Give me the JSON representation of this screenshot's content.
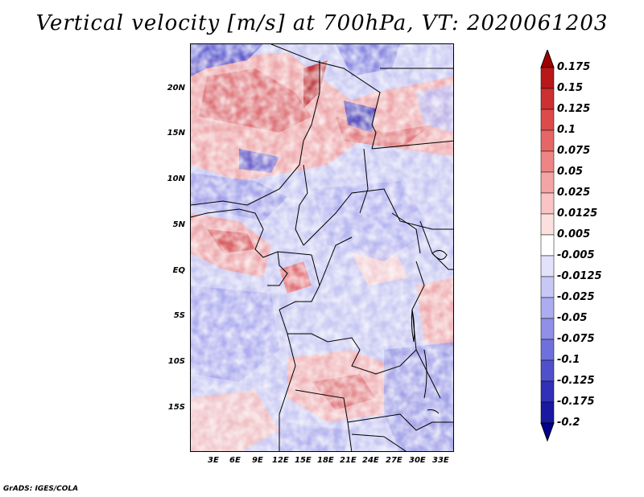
{
  "title": "Vertical velocity [m/s] at 700hPa, VT: 2020061203",
  "credit": "GrADS: IGES/COLA",
  "lat_labels": [
    "20N",
    "15N",
    "10N",
    "5N",
    "EQ",
    "5S",
    "10S",
    "15S"
  ],
  "lon_labels": [
    "3E",
    "6E",
    "9E",
    "12E",
    "15E",
    "18E",
    "21E",
    "24E",
    "27E",
    "30E",
    "33E"
  ],
  "colorbar": {
    "labels": [
      "0.175",
      "0.15",
      "0.125",
      "0.1",
      "0.075",
      "0.05",
      "0.025",
      "0.0125",
      "0.005",
      "-0.005",
      "-0.0125",
      "-0.025",
      "-0.05",
      "-0.075",
      "-0.1",
      "-0.125",
      "-0.175",
      "-0.2"
    ],
    "colors": [
      "#a00000",
      "#b81818",
      "#cc3030",
      "#dd4a4a",
      "#e66666",
      "#ee8484",
      "#f4a4a4",
      "#f8c4c4",
      "#fce0e0",
      "#ffffff",
      "#e2e2fc",
      "#c8c8f6",
      "#acacf0",
      "#9090e6",
      "#7070dc",
      "#5050cc",
      "#3030b8",
      "#1818a0",
      "#00008c"
    ]
  }
}
